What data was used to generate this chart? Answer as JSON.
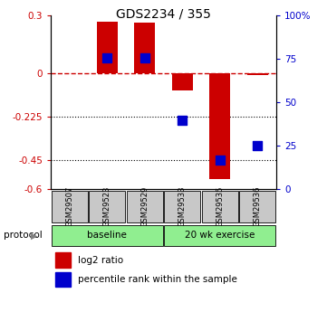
{
  "title": "GDS2234 / 355",
  "samples": [
    "GSM29507",
    "GSM29523",
    "GSM29529",
    "GSM29533",
    "GSM29535",
    "GSM29536"
  ],
  "log2_ratio": [
    0.0,
    0.27,
    0.265,
    -0.09,
    -0.55,
    -0.01
  ],
  "percentile_rank_mapped": [
    null,
    0.08,
    0.08,
    -0.245,
    -0.45,
    -0.375
  ],
  "ylim_left": [
    -0.6,
    0.3
  ],
  "yticks_left": [
    0.3,
    0.0,
    -0.225,
    -0.45,
    -0.6
  ],
  "ytick_labels_left": [
    "0.3",
    "0",
    "-0.225",
    "-0.45",
    "-0.6"
  ],
  "yticks_right_vals": [
    1.0,
    0.75,
    0.5,
    0.25,
    0.0
  ],
  "ytick_labels_right": [
    "100%",
    "75",
    "50",
    "25",
    "0"
  ],
  "hlines_dotted": [
    -0.225,
    -0.45
  ],
  "dashed_line_y": 0.0,
  "protocol_groups": [
    {
      "label": "baseline",
      "start": 0,
      "end": 2
    },
    {
      "label": "20 wk exercise",
      "start": 3,
      "end": 5
    }
  ],
  "protocol_color": "#90EE90",
  "bar_color": "#CC0000",
  "dot_color": "#0000CC",
  "bar_width": 0.55,
  "dot_size": 50,
  "sample_box_color": "#C8C8C8",
  "legend_items": [
    {
      "color": "#CC0000",
      "label": "log2 ratio"
    },
    {
      "color": "#0000CC",
      "label": "percentile rank within the sample"
    }
  ]
}
